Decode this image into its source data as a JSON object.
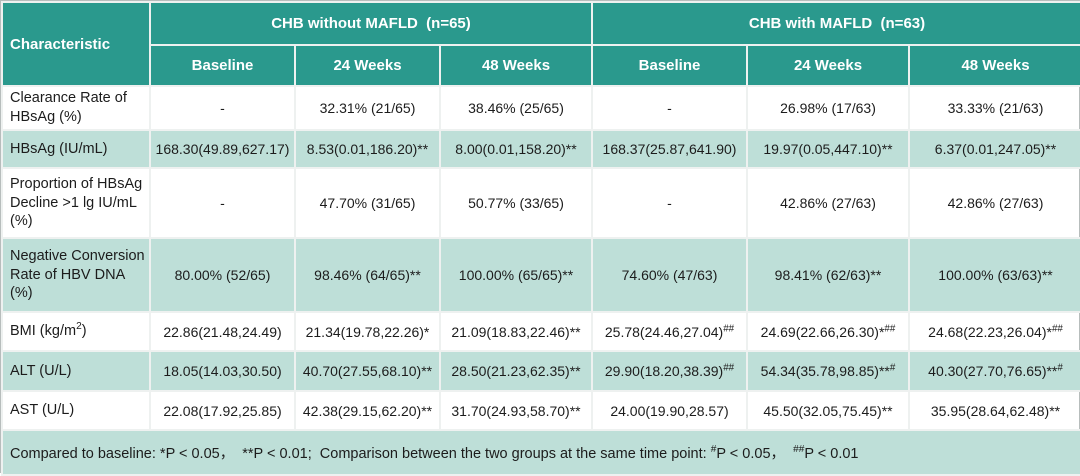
{
  "colors": {
    "header_bg": "#2a998d",
    "header_text": "#ffffff",
    "shaded_row_bg": "#bedfd8",
    "body_text": "#1c1c1c"
  },
  "table": {
    "header": {
      "characteristic_label": "Characteristic",
      "groups": [
        {
          "label": "CHB without MAFLD  (n=65)",
          "subcolumns": [
            "Baseline",
            "24 Weeks",
            "48 Weeks"
          ]
        },
        {
          "label": "CHB with MAFLD  (n=63)",
          "subcolumns": [
            "Baseline",
            "24 Weeks",
            "48 Weeks"
          ]
        }
      ]
    },
    "rows": [
      {
        "label": "Clearance Rate of HBsAg (%)",
        "shaded": false,
        "cells": [
          "-",
          "32.31% (21/65)",
          "38.46% (25/65)",
          "-",
          "26.98% (17/63)",
          "33.33% (21/63)"
        ]
      },
      {
        "label": "HBsAg (IU/mL)",
        "shaded": true,
        "cells": [
          "168.30(49.89,627.17)",
          "8.53(0.01,186.20)**",
          "8.00(0.01,158.20)**",
          "168.37(25.87,641.90)",
          "19.97(0.05,447.10)**",
          "6.37(0.01,247.05)**"
        ]
      },
      {
        "label": "Proportion of HBsAg Decline >1 lg IU/mL (%)",
        "shaded": false,
        "cells": [
          "-",
          "47.70% (31/65)",
          "50.77% (33/65)",
          "-",
          "42.86% (27/63)",
          "42.86% (27/63)"
        ]
      },
      {
        "label": "Negative Conversion Rate of HBV DNA (%)",
        "shaded": true,
        "cells": [
          "80.00% (52/65)",
          "98.46% (64/65)**",
          "100.00% (65/65)**",
          "74.60% (47/63)",
          "98.41% (62/63)**",
          "100.00% (63/63)**"
        ]
      },
      {
        "label": "BMI (kg/m^{2})",
        "shaded": false,
        "cells": [
          "22.86(21.48,24.49)",
          "21.34(19.78,22.26)*",
          "21.09(18.83,22.46)**",
          "25.78(24.46,27.04)^{##}",
          "24.69(22.66,26.30)*^{##}",
          "24.68(22.23,26.04)*^{##}"
        ]
      },
      {
        "label": "ALT (U/L)",
        "shaded": true,
        "cells": [
          "18.05(14.03,30.50)",
          "40.70(27.55,68.10)**",
          "28.50(21.23,62.35)**",
          "29.90(18.20,38.39)^{##}",
          "54.34(35.78,98.85)**^{#}",
          "40.30(27.70,76.65)**^{#}"
        ]
      },
      {
        "label": "AST (U/L)",
        "shaded": false,
        "cells": [
          "22.08(17.92,25.85)",
          "42.38(29.15,62.20)**",
          "31.70(24.93,58.70)**",
          "24.00(19.90,28.57)",
          "45.50(32.05,75.45)**",
          "35.95(28.64,62.48)**"
        ]
      }
    ],
    "footnote": "Compared to baseline: *P < 0.05，  **P < 0.01;  Comparison between the two groups at the same time point: ^{#}P < 0.05，  ^{##}P < 0.01"
  }
}
